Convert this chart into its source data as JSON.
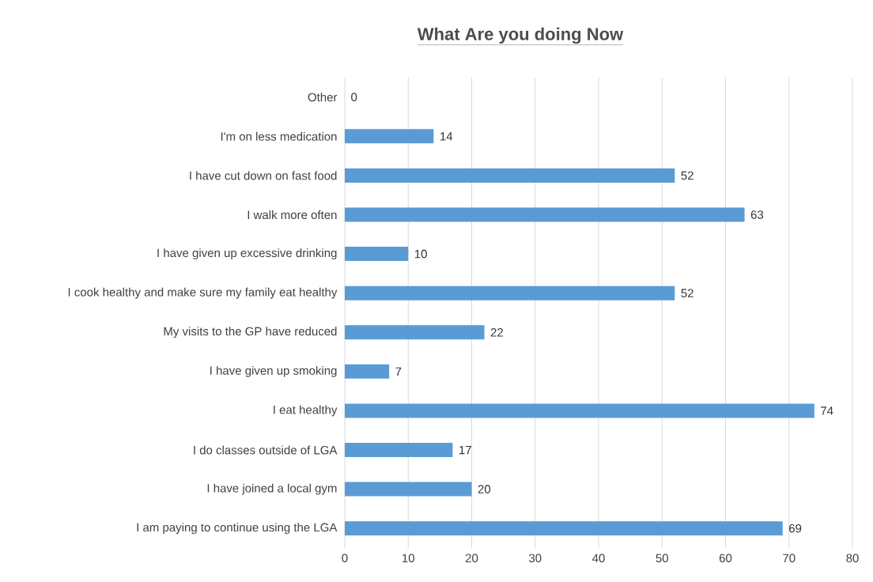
{
  "chart_data": {
    "type": "bar",
    "orientation": "horizontal",
    "title": "What Are you doing Now",
    "categories": [
      "Other",
      "I'm on less medication",
      "I have cut down on fast food",
      "I walk more often",
      "I have given up excessive drinking",
      "I cook healthy and make sure my family eat healthy",
      "My visits to the GP have reduced",
      "I have given up smoking",
      "I eat healthy",
      "I do classes outside of LGA",
      "I have joined a local gym",
      "I am paying to continue using the LGA"
    ],
    "values": [
      0,
      14,
      52,
      63,
      10,
      52,
      22,
      7,
      74,
      17,
      20,
      69
    ],
    "color": "#5b9bd5",
    "xlim": [
      0,
      80
    ],
    "xticks": [
      0,
      10,
      20,
      30,
      40,
      50,
      60,
      70,
      80
    ],
    "grid": "x",
    "data_labels": true
  }
}
